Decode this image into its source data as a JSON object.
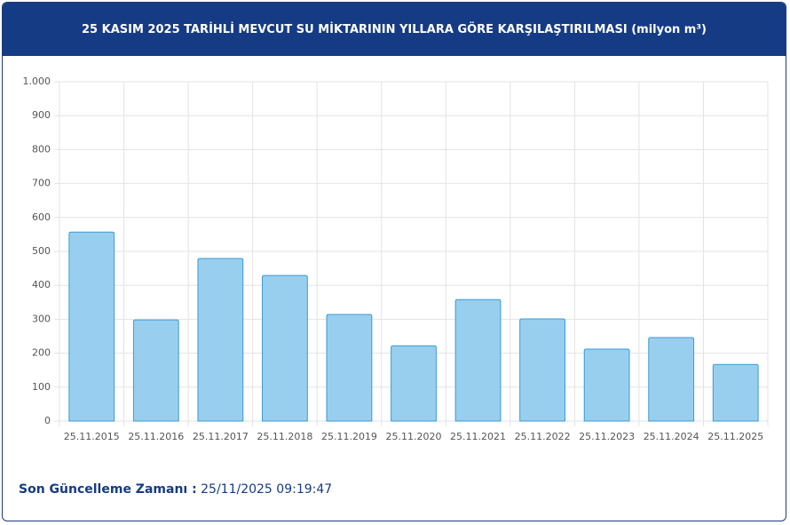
{
  "chart_data": {
    "type": "bar",
    "title": "25 KASIM 2025 TARİHLİ MEVCUT SU MİKTARININ YILLARA GÖRE KARŞILAŞTIRILMASI (milyon m³)",
    "categories": [
      "25.11.2015",
      "25.11.2016",
      "25.11.2017",
      "25.11.2018",
      "25.11.2019",
      "25.11.2020",
      "25.11.2021",
      "25.11.2022",
      "25.11.2023",
      "25.11.2024",
      "25.11.2025"
    ],
    "values": [
      557,
      298,
      479,
      429,
      314,
      222,
      358,
      301,
      212,
      246,
      167
    ],
    "color": "#99cfee",
    "edge_color": "#3a9ad5",
    "ylim": [
      0,
      1000
    ],
    "yticks": [
      0,
      100,
      200,
      300,
      400,
      500,
      600,
      700,
      800,
      900,
      {
        "value": 1000,
        "label": "1.000"
      }
    ],
    "grid": true
  },
  "footer": {
    "label": "Son Güncelleme Zamanı :",
    "value": "25/11/2025 09:19:47"
  }
}
